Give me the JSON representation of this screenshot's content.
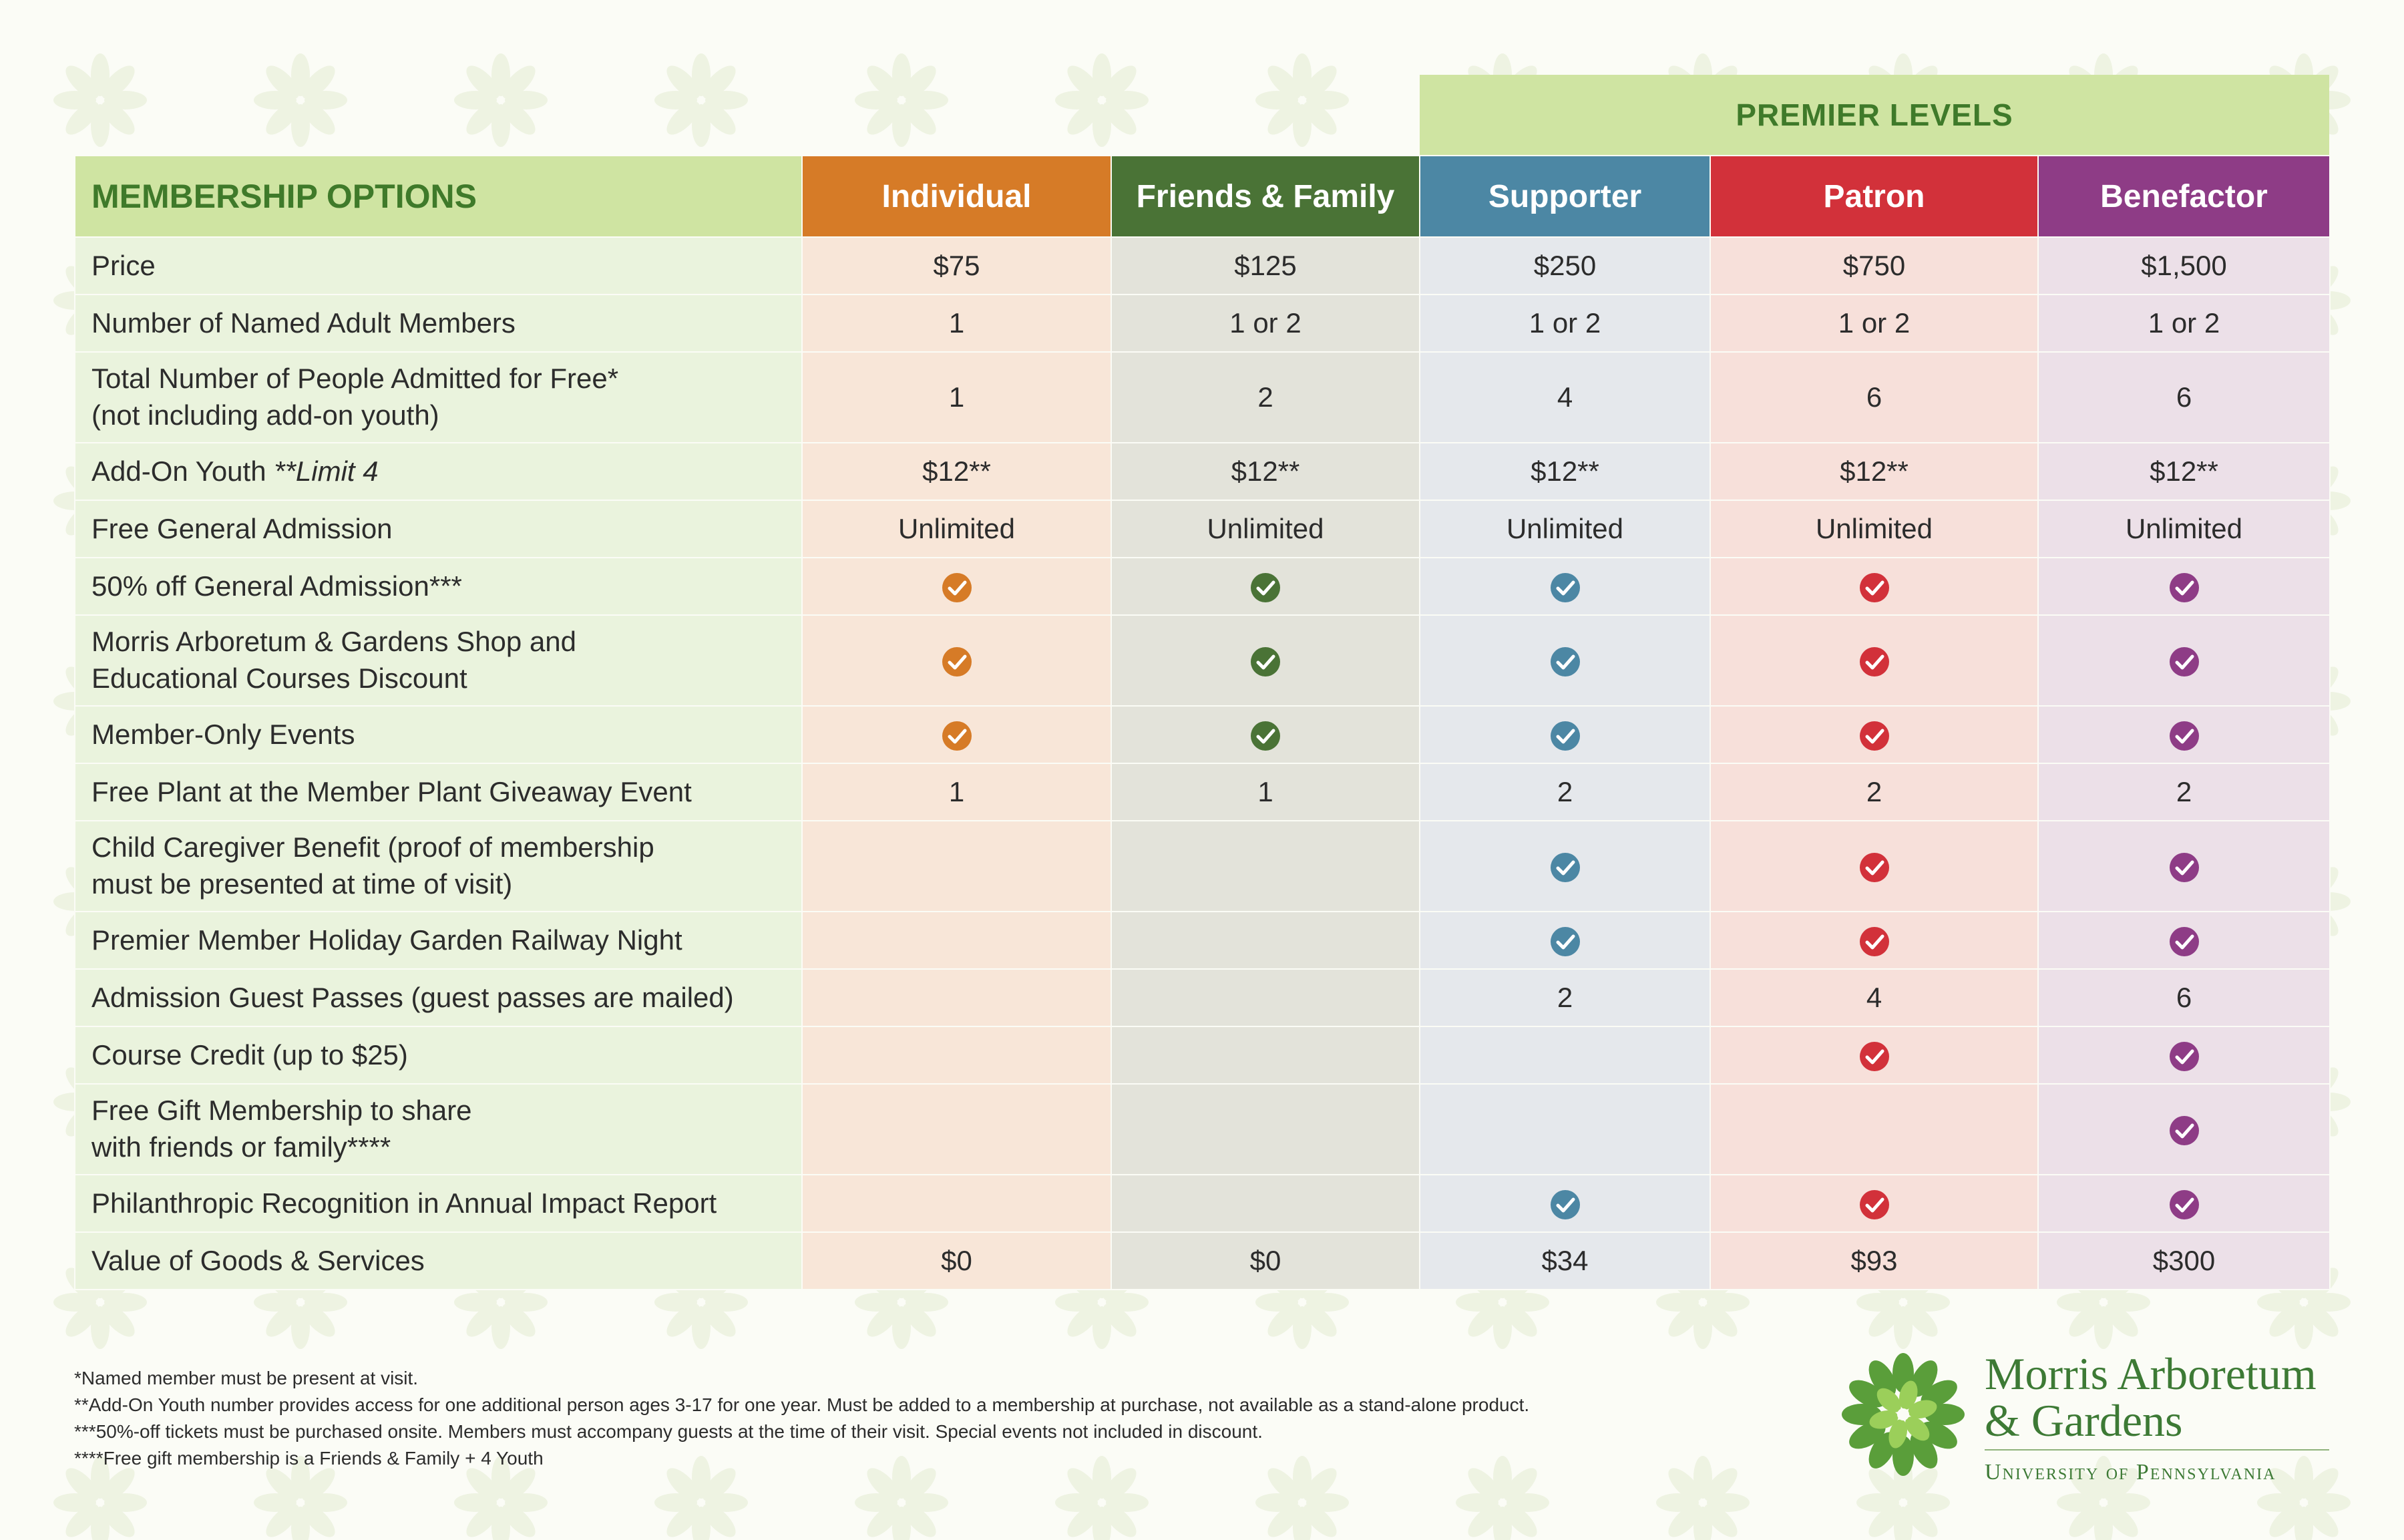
{
  "premier_label": "PREMIER LEVELS",
  "header": {
    "options_label": "MEMBERSHIP OPTIONS",
    "levels": [
      "Individual",
      "Friends & Family",
      "Supporter",
      "Patron",
      "Benefactor"
    ]
  },
  "colors": {
    "individual": "#d67b27",
    "friends_family": "#4a7336",
    "supporter": "#4c87a4",
    "patron": "#d2313a",
    "benefactor": "#8e3c86",
    "premier": "#cfe4a2"
  },
  "check_icon": "check-circle-icon",
  "rows": [
    {
      "label": "Price",
      "values": [
        "$75",
        "$125",
        "$250",
        "$750",
        "$1,500"
      ]
    },
    {
      "label": "Number of Named Adult Members",
      "values": [
        "1",
        "1 or 2",
        "1 or 2",
        "1 or 2",
        "1 or 2"
      ]
    },
    {
      "label": "Total Number of People Admitted for Free*",
      "label2": "(not including add-on youth)",
      "values": [
        "1",
        "2",
        "4",
        "6",
        "6"
      ]
    },
    {
      "label": "Add-On Youth ",
      "label_em": "**Limit 4",
      "values": [
        "$12**",
        "$12**",
        "$12**",
        "$12**",
        "$12**"
      ]
    },
    {
      "label": "Free General Admission",
      "values": [
        "Unlimited",
        "Unlimited",
        "Unlimited",
        "Unlimited",
        "Unlimited"
      ]
    },
    {
      "label": "50% off General Admission***",
      "values": [
        true,
        true,
        true,
        true,
        true
      ]
    },
    {
      "label": "Morris Arboretum & Gardens Shop and",
      "label2": "Educational Courses Discount",
      "values": [
        true,
        true,
        true,
        true,
        true
      ]
    },
    {
      "label": "Member-Only Events",
      "values": [
        true,
        true,
        true,
        true,
        true
      ]
    },
    {
      "label": "Free Plant at the Member Plant Giveaway Event",
      "values": [
        "1",
        "1",
        "2",
        "2",
        "2"
      ]
    },
    {
      "label": "Child Caregiver Benefit (proof of membership",
      "label2": "must be presented at time of visit)",
      "values": [
        "",
        "",
        true,
        true,
        true
      ]
    },
    {
      "label": "Premier Member Holiday Garden Railway Night",
      "values": [
        "",
        "",
        true,
        true,
        true
      ]
    },
    {
      "label": "Admission Guest Passes (guest passes are mailed)",
      "values": [
        "",
        "",
        "2",
        "4",
        "6"
      ]
    },
    {
      "label": "Course Credit (up to $25)",
      "values": [
        "",
        "",
        "",
        true,
        true
      ]
    },
    {
      "label": "Free Gift Membership to share",
      "label2": "with friends or family****",
      "values": [
        "",
        "",
        "",
        "",
        true
      ]
    },
    {
      "label": "Philanthropic Recognition in Annual Impact Report",
      "values": [
        "",
        "",
        true,
        true,
        true
      ]
    },
    {
      "label": "Value of Goods & Services",
      "values": [
        "$0",
        "$0",
        "$34",
        "$93",
        "$300"
      ]
    }
  ],
  "footnotes": [
    "*Named member must be present at visit.",
    "**Add-On Youth number provides access for one additional person ages 3-17 for one year. Must be added to a membership at purchase, not available as a stand-alone product.",
    "***50%-off tickets must be purchased onsite. Members must accompany guests at the time of their visit. Special events not included in discount.",
    "****Free gift membership is a Friends & Family + 4 Youth"
  ],
  "logo": {
    "line1": "Morris Arboretum",
    "line2": "& Gardens",
    "university": "University of Pennsylvania"
  }
}
